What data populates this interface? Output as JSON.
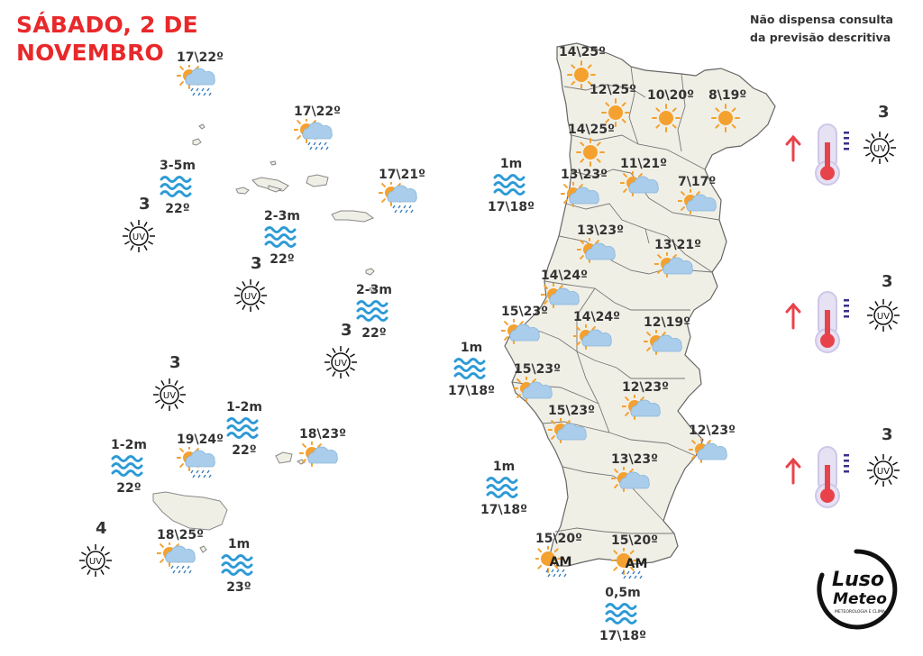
{
  "header": {
    "date_line1": "SÁBADO, 2 DE",
    "date_line2": "NOVEMBRO",
    "disclaimer_line1": "Não dispensa consulta",
    "disclaimer_line2": "da previsão descritiva"
  },
  "logo": {
    "line1": "Luso",
    "line2": "Meteo",
    "tagline": "METEOROLOGIA E CLIMA"
  },
  "colors": {
    "title_red": "#e8282a",
    "land_fill": "#f0efe6",
    "sun_orange": "#f4a12f",
    "cloud_blue": "#a9cdea",
    "wave_blue": "#2d9ad6",
    "rain_blue": "#3b7fbf",
    "arrow_red": "#e8434b"
  },
  "mainland_forecasts": [
    {
      "id": "viana",
      "temp": "14\\25º",
      "icon": "sun"
    },
    {
      "id": "braga",
      "temp": "12\\25º",
      "icon": "sun"
    },
    {
      "id": "vila-real",
      "temp": "10\\20º",
      "icon": "sun"
    },
    {
      "id": "braganca",
      "temp": "8\\19º",
      "icon": "sun"
    },
    {
      "id": "porto",
      "temp": "14\\25º",
      "icon": "sun"
    },
    {
      "id": "aveiro",
      "temp": "13\\23º",
      "icon": "partly-cloudy"
    },
    {
      "id": "viseu",
      "temp": "11\\21º",
      "icon": "partly-cloudy"
    },
    {
      "id": "guarda",
      "temp": "7\\17º",
      "icon": "partly-cloudy"
    },
    {
      "id": "coimbra",
      "temp": "13\\23º",
      "icon": "partly-cloudy"
    },
    {
      "id": "castelo-branco",
      "temp": "13\\21º",
      "icon": "partly-cloudy"
    },
    {
      "id": "leiria",
      "temp": "14\\24º",
      "icon": "partly-cloudy"
    },
    {
      "id": "lisboa-norte",
      "temp": "15\\23º",
      "icon": "partly-cloudy"
    },
    {
      "id": "santarem",
      "temp": "14\\24º",
      "icon": "partly-cloudy"
    },
    {
      "id": "portalegre",
      "temp": "12\\19º",
      "icon": "partly-cloudy"
    },
    {
      "id": "lisboa",
      "temp": "15\\23º",
      "icon": "partly-cloudy"
    },
    {
      "id": "evora",
      "temp": "12\\23º",
      "icon": "partly-cloudy"
    },
    {
      "id": "setubal",
      "temp": "15\\23º",
      "icon": "partly-cloudy"
    },
    {
      "id": "beja-east",
      "temp": "12\\23º",
      "icon": "partly-cloudy"
    },
    {
      "id": "beja",
      "temp": "13\\23º",
      "icon": "partly-cloudy"
    },
    {
      "id": "faro-west",
      "temp": "15\\20º",
      "icon": "fog-am",
      "note": "AM"
    },
    {
      "id": "faro-east",
      "temp": "15\\20º",
      "icon": "fog-am",
      "note": "AM"
    }
  ],
  "mainland_sea": [
    {
      "id": "sea-north",
      "height": "1m",
      "temp": "17\\18º"
    },
    {
      "id": "sea-center",
      "height": "1m",
      "temp": "17\\18º"
    },
    {
      "id": "sea-southwest",
      "height": "1m",
      "temp": "17\\18º"
    },
    {
      "id": "sea-south",
      "height": "0,5m",
      "temp": "17\\18º"
    }
  ],
  "mainland_uv": [
    {
      "id": "uv-north",
      "value": "3",
      "trend": "up"
    },
    {
      "id": "uv-center",
      "value": "3",
      "trend": "up"
    },
    {
      "id": "uv-south",
      "value": "3",
      "trend": "up"
    }
  ],
  "azores": {
    "forecasts": [
      {
        "id": "az-west",
        "temp": "17\\22º",
        "icon": "rain"
      },
      {
        "id": "az-central",
        "temp": "17\\22º",
        "icon": "rain"
      },
      {
        "id": "az-east",
        "temp": "17\\21º",
        "icon": "rain"
      }
    ],
    "sea": [
      {
        "id": "az-sea-west",
        "height": "3-5m",
        "temp": "22º"
      },
      {
        "id": "az-sea-central",
        "height": "2-3m",
        "temp": "22º"
      },
      {
        "id": "az-sea-east",
        "height": "2-3m",
        "temp": "22º"
      }
    ],
    "uv": [
      {
        "id": "az-uv-west",
        "value": "3"
      },
      {
        "id": "az-uv-central",
        "value": "3"
      },
      {
        "id": "az-uv-east",
        "value": "3"
      }
    ]
  },
  "madeira": {
    "forecasts": [
      {
        "id": "md-north",
        "temp": "19\\24º",
        "icon": "rain"
      },
      {
        "id": "md-porto-santo",
        "temp": "18\\23º",
        "icon": "partly-cloudy"
      },
      {
        "id": "md-south",
        "temp": "18\\25º",
        "icon": "rain"
      }
    ],
    "sea": [
      {
        "id": "md-sea-west",
        "height": "1-2m",
        "temp": "22º"
      },
      {
        "id": "md-sea-north",
        "height": "1-2m",
        "temp": "22º"
      },
      {
        "id": "md-sea-south",
        "height": "1m",
        "temp": "23º"
      }
    ],
    "uv": [
      {
        "id": "md-uv-north",
        "value": "3"
      },
      {
        "id": "md-uv-south",
        "value": "4"
      }
    ]
  }
}
